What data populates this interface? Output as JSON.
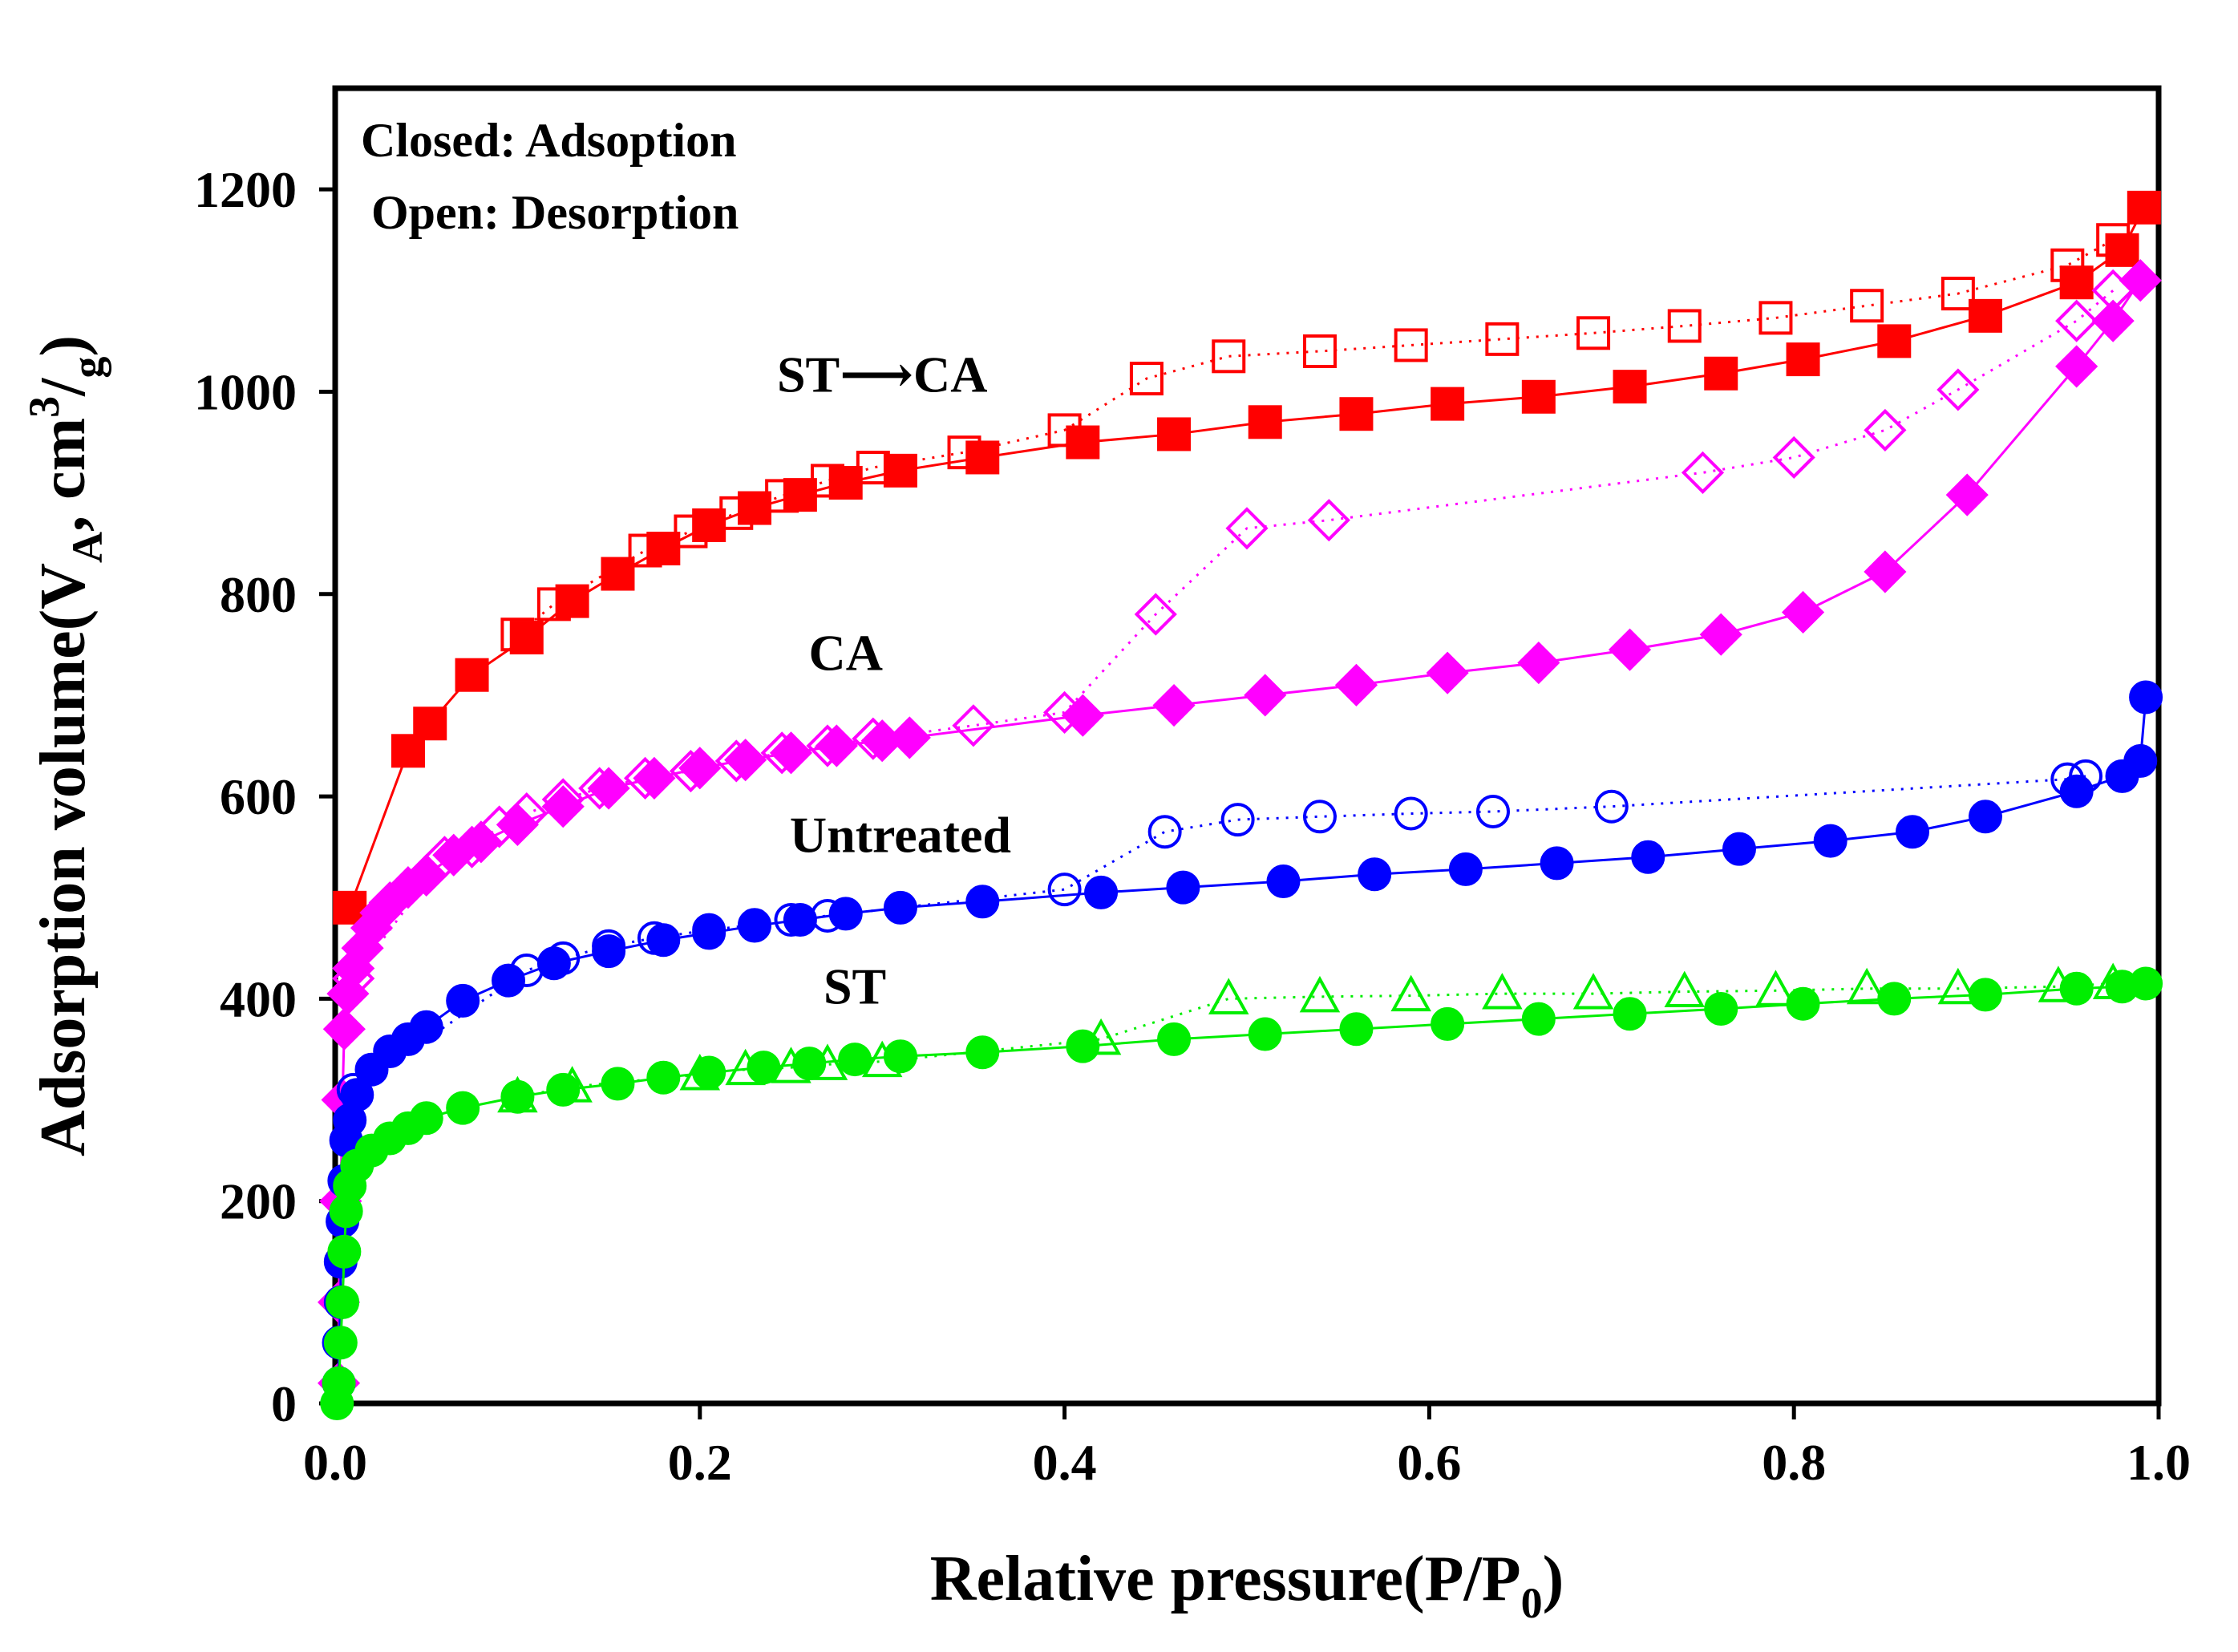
{
  "chart_data": {
    "type": "scatter",
    "xlabel": "Relative pressure(P/P",
    "xlabel_sub": "0",
    "xlabel_end": ")",
    "ylabel_parts": {
      "a": "Adsorption volume(V",
      "sub": "A",
      "b": ", cm",
      "sup": "3",
      "c": "/",
      "sub2": "g",
      "d": ")"
    },
    "xlim": [
      0,
      1.0
    ],
    "ylim": [
      0,
      1300
    ],
    "xticks": [
      0.0,
      0.2,
      0.4,
      0.6,
      0.8,
      1.0
    ],
    "xtick_labels": [
      "0.0",
      "0.2",
      "0.4",
      "0.6",
      "0.8",
      "1.0"
    ],
    "yticks": [
      0,
      200,
      400,
      600,
      800,
      1000,
      1200
    ],
    "ytick_labels": [
      "0",
      "200",
      "400",
      "600",
      "800",
      "1000",
      "1200"
    ],
    "legend_note": [
      "Closed: Adsoption",
      "Open: Desorption"
    ],
    "series_labels": [
      {
        "text": "ST⟶CA",
        "x": 0.3,
        "y": 1000,
        "series": "ST-CA"
      },
      {
        "text": "CA",
        "x": 0.28,
        "y": 725,
        "series": "CA"
      },
      {
        "text": "Untreated",
        "x": 0.31,
        "y": 545,
        "series": "Untreated"
      },
      {
        "text": "ST",
        "x": 0.285,
        "y": 395,
        "series": "ST"
      }
    ],
    "series": [
      {
        "name": "ST-CA",
        "color": "#ff0000",
        "marker": "square",
        "adsorption": [
          [
            0.008,
            490
          ],
          [
            0.04,
            645
          ],
          [
            0.052,
            672
          ],
          [
            0.075,
            720
          ],
          [
            0.105,
            757
          ],
          [
            0.13,
            793
          ],
          [
            0.155,
            820
          ],
          [
            0.18,
            845
          ],
          [
            0.205,
            868
          ],
          [
            0.23,
            885
          ],
          [
            0.255,
            898
          ],
          [
            0.28,
            910
          ],
          [
            0.31,
            922
          ],
          [
            0.355,
            935
          ],
          [
            0.41,
            950
          ],
          [
            0.46,
            958
          ],
          [
            0.51,
            970
          ],
          [
            0.56,
            978
          ],
          [
            0.61,
            988
          ],
          [
            0.66,
            995
          ],
          [
            0.71,
            1005
          ],
          [
            0.76,
            1018
          ],
          [
            0.805,
            1032
          ],
          [
            0.855,
            1050
          ],
          [
            0.905,
            1075
          ],
          [
            0.955,
            1108
          ],
          [
            0.98,
            1140
          ],
          [
            0.992,
            1182
          ]
        ],
        "desorption": [
          [
            0.975,
            1150
          ],
          [
            0.95,
            1125
          ],
          [
            0.89,
            1097
          ],
          [
            0.84,
            1085
          ],
          [
            0.79,
            1073
          ],
          [
            0.74,
            1065
          ],
          [
            0.69,
            1058
          ],
          [
            0.64,
            1052
          ],
          [
            0.59,
            1046
          ],
          [
            0.54,
            1040
          ],
          [
            0.49,
            1035
          ],
          [
            0.445,
            1013
          ],
          [
            0.4,
            962
          ],
          [
            0.345,
            940
          ],
          [
            0.295,
            925
          ],
          [
            0.27,
            912
          ],
          [
            0.245,
            897
          ],
          [
            0.22,
            880
          ],
          [
            0.195,
            862
          ],
          [
            0.17,
            843
          ],
          [
            0.12,
            790
          ],
          [
            0.1,
            760
          ]
        ]
      },
      {
        "name": "CA",
        "color": "#ff00ff",
        "marker": "diamond",
        "adsorption": [
          [
            0.002,
            20
          ],
          [
            0.002,
            100
          ],
          [
            0.003,
            200
          ],
          [
            0.004,
            300
          ],
          [
            0.005,
            370
          ],
          [
            0.007,
            405
          ],
          [
            0.01,
            430
          ],
          [
            0.015,
            450
          ],
          [
            0.02,
            470
          ],
          [
            0.025,
            485
          ],
          [
            0.03,
            495
          ],
          [
            0.04,
            510
          ],
          [
            0.05,
            522
          ],
          [
            0.065,
            542
          ],
          [
            0.08,
            555
          ],
          [
            0.1,
            572
          ],
          [
            0.125,
            590
          ],
          [
            0.15,
            608
          ],
          [
            0.175,
            618
          ],
          [
            0.2,
            628
          ],
          [
            0.225,
            636
          ],
          [
            0.25,
            643
          ],
          [
            0.275,
            650
          ],
          [
            0.3,
            655
          ],
          [
            0.315,
            658
          ],
          [
            0.41,
            680
          ],
          [
            0.46,
            690
          ],
          [
            0.51,
            700
          ],
          [
            0.56,
            710
          ],
          [
            0.61,
            722
          ],
          [
            0.66,
            732
          ],
          [
            0.71,
            745
          ],
          [
            0.76,
            760
          ],
          [
            0.805,
            782
          ],
          [
            0.85,
            822
          ],
          [
            0.895,
            898
          ],
          [
            0.955,
            1025
          ],
          [
            0.975,
            1070
          ],
          [
            0.99,
            1110
          ]
        ],
        "desorption": [
          [
            0.975,
            1100
          ],
          [
            0.955,
            1070
          ],
          [
            0.89,
            1002
          ],
          [
            0.85,
            962
          ],
          [
            0.8,
            935
          ],
          [
            0.75,
            920
          ],
          [
            0.545,
            873
          ],
          [
            0.5,
            865
          ],
          [
            0.45,
            780
          ],
          [
            0.4,
            683
          ],
          [
            0.35,
            670
          ],
          [
            0.295,
            657
          ],
          [
            0.27,
            650
          ],
          [
            0.245,
            643
          ],
          [
            0.22,
            635
          ],
          [
            0.195,
            625
          ],
          [
            0.17,
            618
          ],
          [
            0.145,
            608
          ],
          [
            0.125,
            597
          ],
          [
            0.105,
            583
          ],
          [
            0.09,
            570
          ],
          [
            0.075,
            550
          ],
          [
            0.06,
            540
          ],
          [
            0.01,
            420
          ]
        ]
      },
      {
        "name": "Untreated",
        "color": "#0000ff",
        "marker": "circle",
        "adsorption": [
          [
            0.002,
            20
          ],
          [
            0.002,
            60
          ],
          [
            0.003,
            100
          ],
          [
            0.003,
            140
          ],
          [
            0.004,
            180
          ],
          [
            0.005,
            220
          ],
          [
            0.006,
            260
          ],
          [
            0.008,
            280
          ],
          [
            0.012,
            305
          ],
          [
            0.02,
            330
          ],
          [
            0.03,
            348
          ],
          [
            0.04,
            360
          ],
          [
            0.05,
            372
          ],
          [
            0.07,
            398
          ],
          [
            0.095,
            418
          ],
          [
            0.12,
            435
          ],
          [
            0.15,
            447
          ],
          [
            0.18,
            458
          ],
          [
            0.205,
            465
          ],
          [
            0.23,
            472
          ],
          [
            0.255,
            478
          ],
          [
            0.28,
            484
          ],
          [
            0.31,
            490
          ],
          [
            0.355,
            496
          ],
          [
            0.42,
            505
          ],
          [
            0.465,
            510
          ],
          [
            0.52,
            516
          ],
          [
            0.57,
            523
          ],
          [
            0.62,
            528
          ],
          [
            0.67,
            534
          ],
          [
            0.72,
            540
          ],
          [
            0.77,
            548
          ],
          [
            0.82,
            556
          ],
          [
            0.865,
            565
          ],
          [
            0.905,
            580
          ],
          [
            0.955,
            605
          ],
          [
            0.98,
            620
          ],
          [
            0.99,
            635
          ],
          [
            0.993,
            698
          ]
        ],
        "desorption": [
          [
            0.96,
            620
          ],
          [
            0.95,
            617
          ],
          [
            0.7,
            590
          ],
          [
            0.635,
            585
          ],
          [
            0.59,
            583
          ],
          [
            0.54,
            580
          ],
          [
            0.495,
            577
          ],
          [
            0.455,
            565
          ],
          [
            0.4,
            508
          ],
          [
            0.27,
            482
          ],
          [
            0.25,
            478
          ],
          [
            0.23,
            473
          ],
          [
            0.205,
            468
          ],
          [
            0.175,
            460
          ],
          [
            0.15,
            452
          ],
          [
            0.125,
            440
          ],
          [
            0.105,
            428
          ],
          [
            0.01,
            310
          ]
        ]
      },
      {
        "name": "ST",
        "color": "#00ee00",
        "marker": "circle-triangle",
        "adsorption": [
          [
            0.001,
            0
          ],
          [
            0.002,
            20
          ],
          [
            0.003,
            60
          ],
          [
            0.004,
            100
          ],
          [
            0.005,
            150
          ],
          [
            0.006,
            190
          ],
          [
            0.008,
            215
          ],
          [
            0.012,
            235
          ],
          [
            0.02,
            250
          ],
          [
            0.03,
            262
          ],
          [
            0.04,
            272
          ],
          [
            0.05,
            282
          ],
          [
            0.07,
            292
          ],
          [
            0.1,
            303
          ],
          [
            0.125,
            310
          ],
          [
            0.155,
            316
          ],
          [
            0.18,
            322
          ],
          [
            0.205,
            327
          ],
          [
            0.235,
            332
          ],
          [
            0.26,
            336
          ],
          [
            0.285,
            340
          ],
          [
            0.31,
            343
          ],
          [
            0.355,
            347
          ],
          [
            0.41,
            353
          ],
          [
            0.46,
            360
          ],
          [
            0.51,
            365
          ],
          [
            0.56,
            370
          ],
          [
            0.61,
            375
          ],
          [
            0.66,
            380
          ],
          [
            0.71,
            385
          ],
          [
            0.76,
            390
          ],
          [
            0.805,
            395
          ],
          [
            0.855,
            400
          ],
          [
            0.905,
            404
          ],
          [
            0.955,
            410
          ],
          [
            0.98,
            412
          ],
          [
            0.993,
            415
          ]
        ],
        "desorption": [
          [
            0.975,
            415
          ],
          [
            0.945,
            412
          ],
          [
            0.89,
            410
          ],
          [
            0.84,
            410
          ],
          [
            0.79,
            408
          ],
          [
            0.74,
            407
          ],
          [
            0.69,
            405
          ],
          [
            0.64,
            405
          ],
          [
            0.59,
            403
          ],
          [
            0.54,
            402
          ],
          [
            0.49,
            400
          ],
          [
            0.42,
            360
          ],
          [
            0.3,
            338
          ],
          [
            0.27,
            335
          ],
          [
            0.25,
            332
          ],
          [
            0.225,
            330
          ],
          [
            0.2,
            325
          ],
          [
            0.13,
            313
          ],
          [
            0.1,
            303
          ]
        ]
      }
    ]
  }
}
